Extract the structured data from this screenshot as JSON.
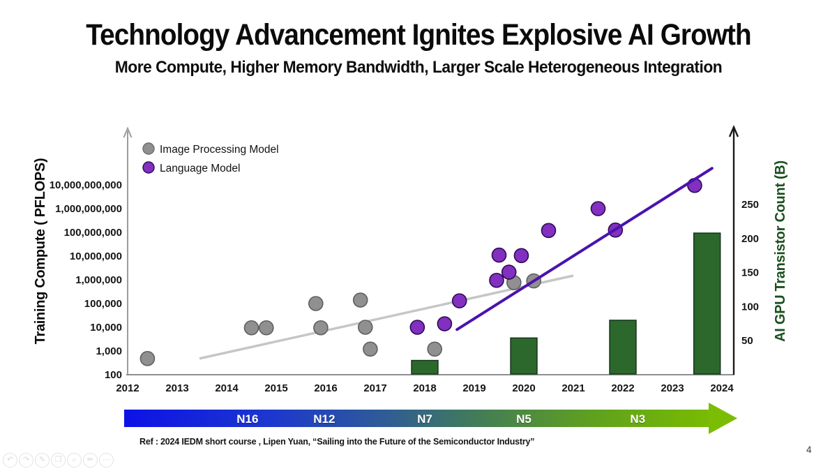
{
  "slide": {
    "title": "Technology Advancement Ignites Explosive AI Growth",
    "subtitle": "More Compute, Higher Memory Bandwidth, Larger Scale Heterogeneous Integration",
    "reference": "Ref : 2024 IEDM short course , Lipen Yuan, “Sailing into the Future of the Semiconductor Industry”",
    "page_number": "4"
  },
  "chart_data": {
    "type": "scatter",
    "subtype": "log-scatter with secondary-axis bars",
    "title": "",
    "x_axis": {
      "label": "",
      "years": [
        2012,
        2013,
        2014,
        2015,
        2016,
        2017,
        2018,
        2019,
        2020,
        2021,
        2022,
        2023,
        2024
      ],
      "range": [
        2012,
        2024.3
      ]
    },
    "left_axis": {
      "label": "Training Compute ( PFLOPS)",
      "scale": "log10",
      "tick_labels": [
        "100",
        "1,000",
        "10,000",
        "100,000",
        "1,000,000",
        "10,000,000",
        "100,000,000",
        "1,000,000,000",
        "10,000,000,000"
      ],
      "range_log10": [
        2,
        10
      ]
    },
    "right_axis": {
      "label": "AI GPU Transistor Count (B)",
      "ticks": [
        50,
        100,
        150,
        200,
        250
      ],
      "range": [
        0,
        250
      ],
      "color": "#1a4f1d"
    },
    "legend": {
      "position": "top-left",
      "entries": [
        {
          "label": "Image Processing Model",
          "color": "#909090"
        },
        {
          "label": "Language Model",
          "color": "#8230c0"
        }
      ]
    },
    "grid": "off",
    "series": [
      {
        "name": "Image Processing Model",
        "type": "scatter",
        "color": "#909090",
        "stroke": "#5f5f5f",
        "points": [
          {
            "year": 2012.4,
            "pflops": 480
          },
          {
            "year": 2014.5,
            "pflops": 9500
          },
          {
            "year": 2014.8,
            "pflops": 9500
          },
          {
            "year": 2015.8,
            "pflops": 100000
          },
          {
            "year": 2015.9,
            "pflops": 9500
          },
          {
            "year": 2016.7,
            "pflops": 140000
          },
          {
            "year": 2016.8,
            "pflops": 10000
          },
          {
            "year": 2016.9,
            "pflops": 1200
          },
          {
            "year": 2018.2,
            "pflops": 1200
          },
          {
            "year": 2019.8,
            "pflops": 760000
          },
          {
            "year": 2020.2,
            "pflops": 900000
          }
        ]
      },
      {
        "name": "Language Model",
        "type": "scatter",
        "color": "#8230c0",
        "stroke": "#2c0a54",
        "points": [
          {
            "year": 2017.85,
            "pflops": 10000
          },
          {
            "year": 2018.4,
            "pflops": 14000
          },
          {
            "year": 2018.7,
            "pflops": 130000
          },
          {
            "year": 2019.45,
            "pflops": 950000
          },
          {
            "year": 2019.5,
            "pflops": 11000000
          },
          {
            "year": 2019.7,
            "pflops": 2100000
          },
          {
            "year": 2019.95,
            "pflops": 10500000
          },
          {
            "year": 2020.5,
            "pflops": 120000000
          },
          {
            "year": 2021.5,
            "pflops": 1000000000
          },
          {
            "year": 2021.85,
            "pflops": 125000000
          },
          {
            "year": 2023.45,
            "pflops": 9500000000
          }
        ]
      },
      {
        "name": "AI GPU Transistor Count (B)",
        "type": "bar",
        "color": "#2c672c",
        "stroke": "#14301a",
        "points": [
          {
            "year": 2018,
            "value": 21
          },
          {
            "year": 2020,
            "value": 54
          },
          {
            "year": 2022,
            "value": 80
          },
          {
            "year": 2024,
            "value": 208,
            "draw_year": 2023.7
          }
        ]
      }
    ],
    "trend_lines": [
      {
        "series": "Image Processing Model",
        "color": "#c6c6c6",
        "from": {
          "year": 2013.45,
          "pflops": 480
        },
        "to": {
          "year": 2021.0,
          "pflops": 1500000
        }
      },
      {
        "series": "Language Model",
        "color": "#4a13ae",
        "from": {
          "year": 2018.65,
          "pflops": 8000
        },
        "to": {
          "year": 2023.8,
          "pflops": 50000000000
        }
      }
    ]
  },
  "process_arrow": {
    "labels": [
      {
        "text": "N16",
        "year": 2014.42
      },
      {
        "text": "N12",
        "year": 2015.97
      },
      {
        "text": "N7",
        "year": 2018.0
      },
      {
        "text": "N5",
        "year": 2020.0
      },
      {
        "text": "N3",
        "year": 2022.3
      }
    ],
    "gradient_start": "#0d12e6",
    "gradient_end": "#79bb02"
  },
  "annotation_toolbar": {
    "tools": [
      {
        "name": "undo",
        "glyph": "↶"
      },
      {
        "name": "redo",
        "glyph": "↷"
      },
      {
        "name": "pen",
        "glyph": "✎"
      },
      {
        "name": "copy",
        "glyph": "❐"
      },
      {
        "name": "search",
        "glyph": "⌕"
      },
      {
        "name": "highlight",
        "glyph": "✏"
      },
      {
        "name": "more",
        "glyph": "⋯"
      }
    ]
  }
}
